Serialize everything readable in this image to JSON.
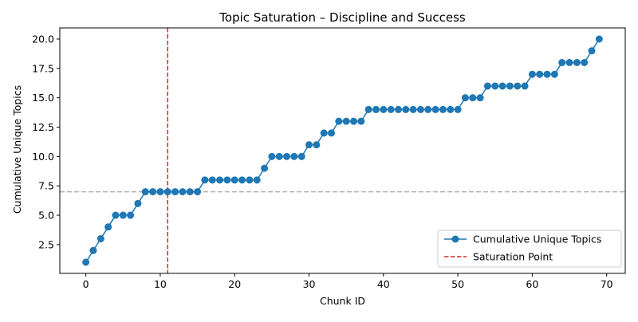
{
  "chart_data": {
    "type": "line",
    "title": "Topic Saturation – Discipline and Success",
    "xlabel": "Chunk ID",
    "ylabel": "Cumulative Unique Topics",
    "xlim": [
      -3.5,
      72.5
    ],
    "ylim": [
      0.05,
      20.95
    ],
    "xticks": [
      0,
      10,
      20,
      30,
      40,
      50,
      60,
      70
    ],
    "xtick_labels": [
      "0",
      "10",
      "20",
      "30",
      "40",
      "50",
      "60",
      "70"
    ],
    "yticks": [
      2.5,
      5.0,
      7.5,
      10.0,
      12.5,
      15.0,
      17.5,
      20.0
    ],
    "ytick_labels": [
      "2.5",
      "5.0",
      "7.5",
      "10.0",
      "12.5",
      "15.0",
      "17.5",
      "20.0"
    ],
    "grid": false,
    "legend_position": "lower-right",
    "series": [
      {
        "name": "Cumulative Unique Topics",
        "color": "#1f77b4",
        "marker": "circle",
        "x": [
          0,
          1,
          2,
          3,
          4,
          5,
          6,
          7,
          8,
          9,
          10,
          11,
          12,
          13,
          14,
          15,
          16,
          17,
          18,
          19,
          20,
          21,
          22,
          23,
          24,
          25,
          26,
          27,
          28,
          29,
          30,
          31,
          32,
          33,
          34,
          35,
          36,
          37,
          38,
          39,
          40,
          41,
          42,
          43,
          44,
          45,
          46,
          47,
          48,
          49,
          50,
          51,
          52,
          53,
          54,
          55,
          56,
          57,
          58,
          59,
          60,
          61,
          62,
          63,
          64,
          65,
          66,
          67,
          68,
          69
        ],
        "y": [
          1,
          2,
          3,
          4,
          5,
          5,
          5,
          6,
          7,
          7,
          7,
          7,
          7,
          7,
          7,
          7,
          8,
          8,
          8,
          8,
          8,
          8,
          8,
          8,
          9,
          10,
          10,
          10,
          10,
          10,
          11,
          11,
          12,
          12,
          13,
          13,
          13,
          13,
          14,
          14,
          14,
          14,
          14,
          14,
          14,
          14,
          14,
          14,
          14,
          14,
          14,
          15,
          15,
          15,
          16,
          16,
          16,
          16,
          16,
          16,
          17,
          17,
          17,
          17,
          18,
          18,
          18,
          18,
          19,
          20
        ]
      }
    ],
    "reference_lines": [
      {
        "name": "Saturation Point",
        "orientation": "vertical",
        "value": 11,
        "color": "#d62728",
        "style": "dashed"
      },
      {
        "name": "",
        "orientation": "horizontal",
        "value": 7,
        "color": "#b0b0b0",
        "style": "dashed"
      }
    ]
  }
}
